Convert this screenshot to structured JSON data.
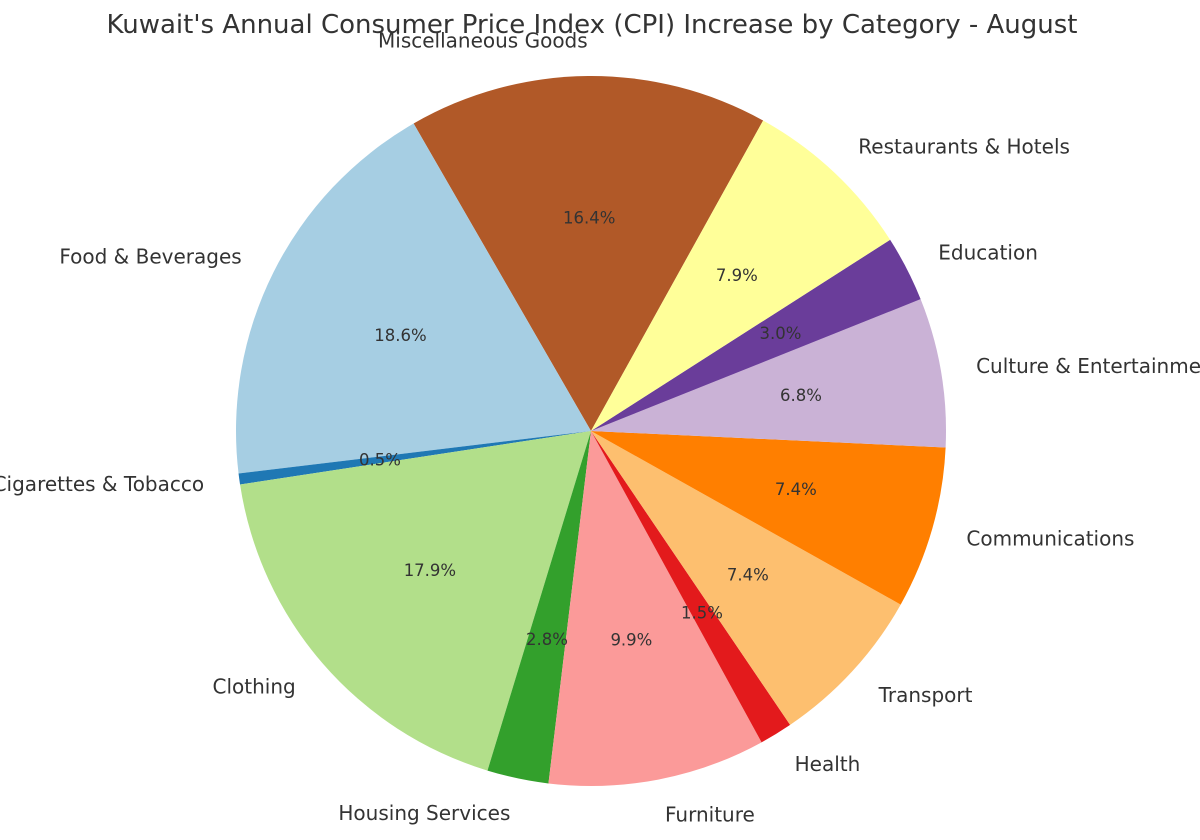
{
  "chart_data": {
    "type": "pie",
    "title": "Kuwait's Annual Consumer Price Index (CPI) Increase by Category - August",
    "start_angle_deg": 61,
    "direction": "counterclockwise",
    "slices": [
      {
        "label": "Miscellaneous Goods",
        "value": 16.4,
        "pct_label": "16.4%",
        "color": "#b15928"
      },
      {
        "label": "Food & Beverages",
        "value": 18.6,
        "pct_label": "18.6%",
        "color": "#a6cee3"
      },
      {
        "label": "Cigarettes & Tobacco",
        "value": 0.5,
        "pct_label": "0.5%",
        "color": "#1f78b4"
      },
      {
        "label": "Clothing",
        "value": 17.9,
        "pct_label": "17.9%",
        "color": "#b2df8a"
      },
      {
        "label": "Housing Services",
        "value": 2.8,
        "pct_label": "2.8%",
        "color": "#33a02c"
      },
      {
        "label": "Furniture",
        "value": 9.9,
        "pct_label": "9.9%",
        "color": "#fb9a99"
      },
      {
        "label": "Health",
        "value": 1.5,
        "pct_label": "1.5%",
        "color": "#e31a1c"
      },
      {
        "label": "Transport",
        "value": 7.4,
        "pct_label": "7.4%",
        "color": "#fdbf6f"
      },
      {
        "label": "Communications",
        "value": 7.4,
        "pct_label": "7.4%",
        "color": "#ff7f00"
      },
      {
        "label": "Culture & Entertainment",
        "value": 6.8,
        "pct_label": "6.8%",
        "color": "#cab2d6"
      },
      {
        "label": "Education",
        "value": 3.0,
        "pct_label": "3.0%",
        "color": "#6a3d9a"
      },
      {
        "label": "Restaurants & Hotels",
        "value": 7.9,
        "pct_label": "7.9%",
        "color": "#ffff99"
      }
    ]
  }
}
